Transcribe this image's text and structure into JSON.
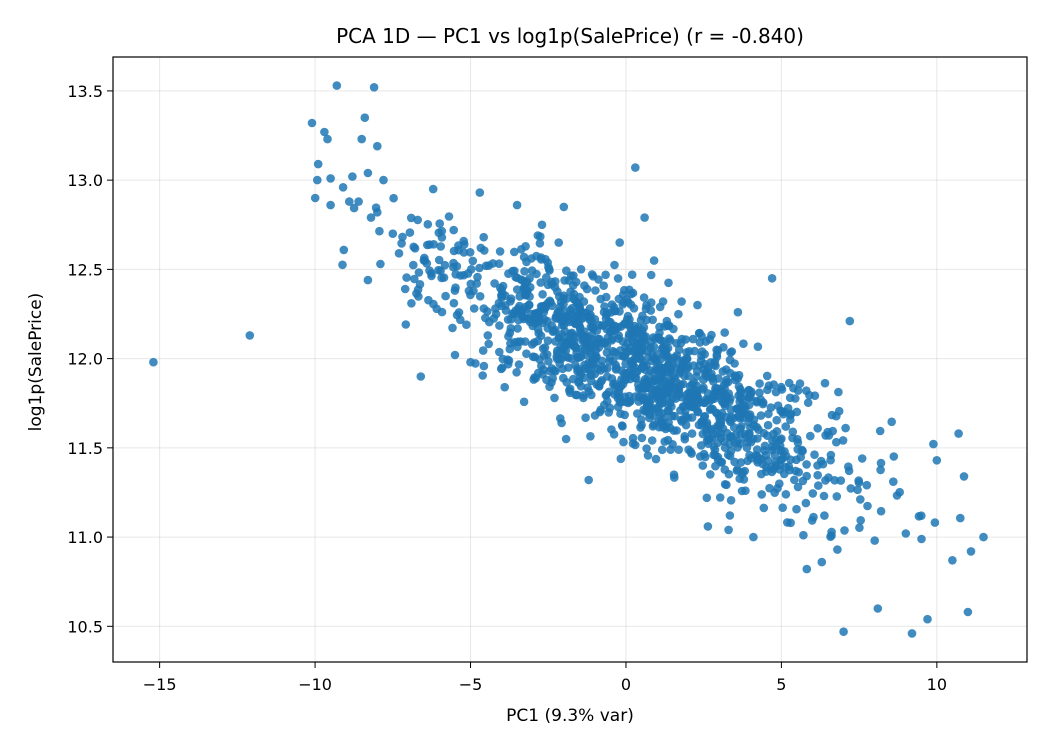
{
  "chart_data": {
    "type": "scatter",
    "title": "PCA 1D — PC1 vs log1p(SalePrice)  (r = -0.840)",
    "xlabel": "PC1 (9.3% var)",
    "ylabel": "log1p(SalePrice)",
    "xlim": [
      -16.5,
      12.9
    ],
    "ylim": [
      10.3,
      13.69
    ],
    "xticks": [
      -15,
      -10,
      -5,
      0,
      5,
      10
    ],
    "xtick_labels": [
      "−15",
      "−10",
      "−5",
      "0",
      "5",
      "10"
    ],
    "yticks": [
      10.5,
      11.0,
      11.5,
      12.0,
      12.5,
      13.0,
      13.5
    ],
    "ytick_labels": [
      "10.5",
      "11.0",
      "11.5",
      "12.0",
      "12.5",
      "13.0",
      "13.5"
    ],
    "grid": true,
    "point_color": "#1f77b4",
    "point_count": 1460,
    "trend": {
      "slope": -0.087,
      "intercept": 11.98,
      "residual_sd": 0.19
    },
    "points": [
      [
        -15.2,
        11.98
      ],
      [
        -12.1,
        12.13
      ],
      [
        -10.1,
        13.32
      ],
      [
        -9.9,
        13.09
      ],
      [
        -9.7,
        13.27
      ],
      [
        -9.6,
        13.23
      ],
      [
        -9.5,
        13.01
      ],
      [
        -9.5,
        12.86
      ],
      [
        -9.3,
        13.53
      ],
      [
        -9.1,
        12.96
      ],
      [
        -8.9,
        12.88
      ],
      [
        -8.8,
        13.02
      ],
      [
        -8.6,
        12.88
      ],
      [
        -8.5,
        13.23
      ],
      [
        -8.4,
        13.35
      ],
      [
        -8.3,
        13.04
      ],
      [
        -8.2,
        12.79
      ],
      [
        -8.1,
        13.52
      ],
      [
        -8.0,
        13.19
      ],
      [
        -8.0,
        12.82
      ],
      [
        -8.3,
        12.44
      ],
      [
        -7.9,
        12.53
      ],
      [
        -7.8,
        13.0
      ],
      [
        -7.5,
        12.7
      ],
      [
        -7.3,
        12.59
      ],
      [
        -7.1,
        12.39
      ],
      [
        -6.9,
        12.31
      ],
      [
        -6.6,
        11.9
      ],
      [
        -6.5,
        12.55
      ],
      [
        -6.2,
        12.95
      ],
      [
        -5.8,
        12.35
      ],
      [
        -5.5,
        12.02
      ],
      [
        -5.2,
        12.64
      ],
      [
        -5.0,
        11.98
      ],
      [
        -4.7,
        12.93
      ],
      [
        -4.5,
        12.52
      ],
      [
        -4.2,
        12.28
      ],
      [
        -3.9,
        11.84
      ],
      [
        -3.5,
        12.86
      ],
      [
        -3.1,
        12.45
      ],
      [
        -2.9,
        11.89
      ],
      [
        -2.7,
        12.75
      ],
      [
        -2.3,
        11.78
      ],
      [
        -2.0,
        12.85
      ],
      [
        -1.6,
        12.43
      ],
      [
        -1.2,
        11.32
      ],
      [
        -1.0,
        12.22
      ],
      [
        -0.6,
        11.9
      ],
      [
        -0.2,
        12.65
      ],
      [
        0.2,
        12.47
      ],
      [
        0.3,
        13.07
      ],
      [
        0.6,
        12.79
      ],
      [
        0.9,
        11.63
      ],
      [
        1.1,
        12.29
      ],
      [
        1.5,
        11.52
      ],
      [
        1.8,
        12.11
      ],
      [
        2.3,
        12.3
      ],
      [
        2.6,
        11.22
      ],
      [
        3.0,
        11.67
      ],
      [
        3.3,
        11.04
      ],
      [
        3.6,
        12.26
      ],
      [
        4.1,
        11.0
      ],
      [
        4.3,
        11.86
      ],
      [
        4.7,
        12.45
      ],
      [
        5.1,
        11.48
      ],
      [
        5.3,
        11.08
      ],
      [
        5.8,
        11.82
      ],
      [
        6.3,
        10.86
      ],
      [
        6.8,
        10.93
      ],
      [
        7.0,
        10.47
      ],
      [
        7.2,
        12.21
      ],
      [
        7.6,
        11.44
      ],
      [
        8.0,
        10.98
      ],
      [
        8.1,
        10.6
      ],
      [
        8.6,
        11.31
      ],
      [
        9.0,
        11.02
      ],
      [
        9.2,
        10.46
      ],
      [
        9.5,
        11.12
      ],
      [
        9.7,
        10.54
      ],
      [
        10.0,
        11.43
      ],
      [
        10.5,
        10.87
      ],
      [
        10.7,
        11.58
      ],
      [
        11.0,
        10.58
      ],
      [
        11.1,
        10.92
      ],
      [
        11.5,
        11.0
      ]
    ]
  }
}
